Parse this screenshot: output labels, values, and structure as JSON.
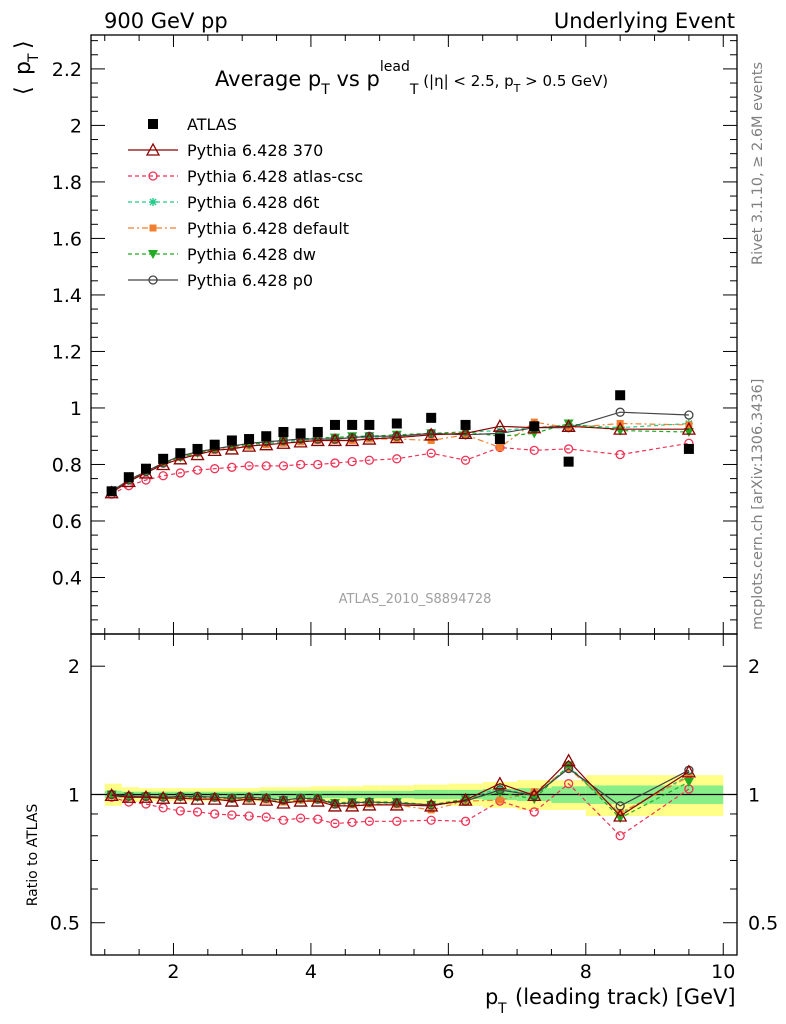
{
  "header": {
    "left": "900 GeV pp",
    "right": "Underlying Event"
  },
  "side_labels": {
    "rivet": "Rivet 3.1.10, ≥ 2.6M events",
    "mcplots": "mcplots.cern.ch [arXiv:1306.3436]"
  },
  "title": {
    "main_a": "Average p",
    "main_sub_a": "T",
    "main_b": " vs p",
    "main_sup_b": "lead",
    "main_sub_b": "T",
    "cuts_a": "(|η| < 2.5, p",
    "cuts_sub": "T",
    "cuts_b": " > 0.5 GeV)"
  },
  "watermark": "ATLAS_2010_S8894728",
  "colors": {
    "ATLAS": "#000000",
    "p370": "#8b0000",
    "atlascsc": "#ee3355",
    "d6t": "#22cc88",
    "default": "#f08030",
    "dw": "#22aa22",
    "p0": "#444444",
    "band_outer": "#ffff88",
    "band_inner": "#88ee88"
  },
  "chart_data": [
    {
      "type": "line",
      "panel": "main",
      "ylabel": "⟨ p_T ⟩",
      "xlim": [
        0.8,
        10.2
      ],
      "ylim": [
        0.2,
        2.32
      ],
      "yticks": [
        "0.4",
        "0.6",
        "0.8",
        "1",
        "1.2",
        "1.4",
        "1.6",
        "1.8",
        "2",
        "2.2"
      ],
      "ytick_values": [
        0.4,
        0.6,
        0.8,
        1.0,
        1.2,
        1.4,
        1.6,
        1.8,
        2.0,
        2.2
      ],
      "x": [
        1.1,
        1.35,
        1.6,
        1.85,
        2.1,
        2.35,
        2.6,
        2.85,
        3.1,
        3.35,
        3.6,
        3.85,
        4.1,
        4.35,
        4.6,
        4.85,
        5.25,
        5.75,
        6.25,
        6.75,
        7.25,
        7.75,
        8.5,
        9.5
      ],
      "legend": [
        "ATLAS",
        "Pythia 6.428 370",
        "Pythia 6.428 atlas-csc",
        "Pythia 6.428 d6t",
        "Pythia 6.428 default",
        "Pythia 6.428 dw",
        "Pythia 6.428 p0"
      ],
      "legend_position": "top-left",
      "series": [
        {
          "name": "ATLAS",
          "key": "ATLAS",
          "values": [
            0.705,
            0.755,
            0.785,
            0.82,
            0.84,
            0.855,
            0.87,
            0.885,
            0.89,
            0.9,
            0.915,
            0.91,
            0.915,
            0.94,
            0.94,
            0.94,
            0.945,
            0.965,
            0.94,
            0.89,
            0.935,
            0.81,
            1.045,
            0.855
          ]
        },
        {
          "name": "Pythia 6.428 370",
          "key": "p370",
          "values": [
            0.7,
            0.74,
            0.77,
            0.8,
            0.82,
            0.835,
            0.85,
            0.855,
            0.865,
            0.87,
            0.875,
            0.88,
            0.885,
            0.885,
            0.885,
            0.89,
            0.895,
            0.905,
            0.91,
            0.935,
            0.93,
            0.935,
            0.925,
            0.925
          ]
        },
        {
          "name": "Pythia 6.428 atlas-csc",
          "key": "atlascsc",
          "values": [
            0.695,
            0.725,
            0.745,
            0.76,
            0.77,
            0.78,
            0.785,
            0.79,
            0.795,
            0.795,
            0.795,
            0.8,
            0.8,
            0.805,
            0.81,
            0.815,
            0.82,
            0.84,
            0.815,
            0.86,
            0.85,
            0.855,
            0.835,
            0.875
          ]
        },
        {
          "name": "Pythia 6.428 d6t",
          "key": "d6t",
          "values": [
            0.705,
            0.745,
            0.775,
            0.805,
            0.825,
            0.84,
            0.855,
            0.865,
            0.87,
            0.875,
            0.88,
            0.885,
            0.89,
            0.89,
            0.895,
            0.895,
            0.9,
            0.91,
            0.915,
            0.92,
            0.93,
            0.94,
            0.93,
            0.945
          ]
        },
        {
          "name": "Pythia 6.428 default",
          "key": "default",
          "values": [
            0.7,
            0.745,
            0.775,
            0.805,
            0.825,
            0.84,
            0.85,
            0.86,
            0.865,
            0.87,
            0.875,
            0.88,
            0.885,
            0.885,
            0.885,
            0.89,
            0.89,
            0.885,
            0.905,
            0.86,
            0.95,
            0.93,
            0.945,
            0.94
          ]
        },
        {
          "name": "Pythia 6.428 dw",
          "key": "dw",
          "values": [
            0.705,
            0.745,
            0.775,
            0.805,
            0.825,
            0.84,
            0.855,
            0.865,
            0.87,
            0.88,
            0.885,
            0.89,
            0.895,
            0.895,
            0.9,
            0.9,
            0.905,
            0.91,
            0.915,
            0.9,
            0.91,
            0.945,
            0.92,
            0.915
          ]
        },
        {
          "name": "Pythia 6.428 p0",
          "key": "p0",
          "values": [
            0.705,
            0.745,
            0.775,
            0.805,
            0.83,
            0.845,
            0.855,
            0.865,
            0.875,
            0.88,
            0.885,
            0.89,
            0.89,
            0.89,
            0.895,
            0.9,
            0.9,
            0.91,
            0.905,
            0.91,
            0.93,
            0.93,
            0.985,
            0.975
          ]
        }
      ]
    },
    {
      "type": "line",
      "panel": "ratio",
      "ylabel": "Ratio to ATLAS",
      "xlabel": "p_T (leading track) [GeV]",
      "xlim": [
        0.8,
        10.2
      ],
      "xticks": [
        "2",
        "4",
        "6",
        "8",
        "10"
      ],
      "xtick_values": [
        2,
        4,
        6,
        8,
        10
      ],
      "ylim": [
        0.42,
        2.38
      ],
      "log_y": true,
      "yticks": [
        "0.5",
        "1",
        "2"
      ],
      "ytick_values": [
        0.5,
        1,
        2
      ],
      "x_edges": [
        1.0,
        1.25,
        1.5,
        1.75,
        2.0,
        2.25,
        2.5,
        2.75,
        3.0,
        3.25,
        3.5,
        3.75,
        4.0,
        4.25,
        4.5,
        4.75,
        5.0,
        5.5,
        6.0,
        6.5,
        7.0,
        7.5,
        8.0,
        9.0,
        10.0
      ],
      "band_outer_halfwidth": [
        0.06,
        0.04,
        0.035,
        0.035,
        0.035,
        0.035,
        0.035,
        0.035,
        0.035,
        0.04,
        0.04,
        0.04,
        0.045,
        0.045,
        0.045,
        0.05,
        0.05,
        0.055,
        0.06,
        0.07,
        0.08,
        0.08,
        0.11,
        0.11
      ],
      "band_inner_halfwidth": [
        0.02,
        0.015,
        0.015,
        0.015,
        0.015,
        0.015,
        0.015,
        0.015,
        0.015,
        0.02,
        0.02,
        0.02,
        0.02,
        0.02,
        0.02,
        0.02,
        0.02,
        0.025,
        0.025,
        0.03,
        0.035,
        0.045,
        0.05,
        0.05
      ],
      "series": [
        {
          "name": "Pythia 6.428 370",
          "key": "p370",
          "values": [
            0.995,
            0.985,
            0.985,
            0.98,
            0.98,
            0.975,
            0.975,
            0.965,
            0.975,
            0.97,
            0.955,
            0.965,
            0.965,
            0.94,
            0.94,
            0.945,
            0.945,
            0.94,
            0.97,
            1.06,
            0.995,
            1.2,
            0.89,
            1.13
          ]
        },
        {
          "name": "Pythia 6.428 atlas-csc",
          "key": "atlascsc",
          "values": [
            0.985,
            0.96,
            0.95,
            0.93,
            0.915,
            0.91,
            0.9,
            0.895,
            0.89,
            0.885,
            0.87,
            0.88,
            0.875,
            0.855,
            0.86,
            0.865,
            0.865,
            0.87,
            0.865,
            0.965,
            0.91,
            1.06,
            0.8,
            1.03
          ]
        },
        {
          "name": "Pythia 6.428 d6t",
          "key": "d6t",
          "values": [
            1.0,
            0.99,
            0.985,
            0.985,
            0.985,
            0.985,
            0.985,
            0.98,
            0.98,
            0.975,
            0.965,
            0.97,
            0.975,
            0.95,
            0.955,
            0.955,
            0.955,
            0.945,
            0.975,
            1.035,
            0.995,
            1.16,
            0.9,
            1.11
          ]
        },
        {
          "name": "Pythia 6.428 default",
          "key": "default",
          "values": [
            0.995,
            0.99,
            0.985,
            0.985,
            0.985,
            0.985,
            0.98,
            0.975,
            0.975,
            0.97,
            0.96,
            0.97,
            0.97,
            0.945,
            0.945,
            0.95,
            0.945,
            0.92,
            0.965,
            0.97,
            1.015,
            1.15,
            0.905,
            1.1
          ]
        },
        {
          "name": "Pythia 6.428 dw",
          "key": "dw",
          "values": [
            1.0,
            0.99,
            0.99,
            0.985,
            0.985,
            0.985,
            0.985,
            0.98,
            0.98,
            0.98,
            0.97,
            0.98,
            0.98,
            0.955,
            0.96,
            0.96,
            0.96,
            0.945,
            0.975,
            1.01,
            0.975,
            1.17,
            0.88,
            1.07
          ]
        },
        {
          "name": "Pythia 6.428 p0",
          "key": "p0",
          "values": [
            1.0,
            0.99,
            0.99,
            0.985,
            0.99,
            0.99,
            0.985,
            0.98,
            0.985,
            0.98,
            0.97,
            0.98,
            0.975,
            0.95,
            0.955,
            0.96,
            0.955,
            0.945,
            0.965,
            1.025,
            0.995,
            1.15,
            0.94,
            1.14
          ]
        }
      ]
    }
  ]
}
